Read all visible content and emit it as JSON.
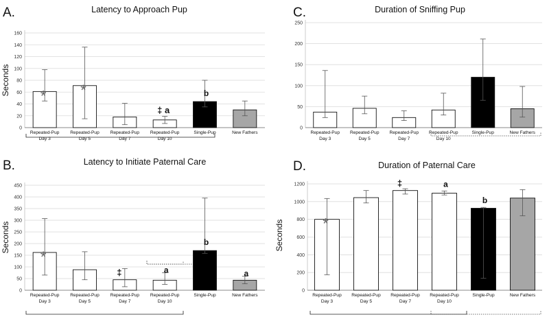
{
  "chart_data": [
    {
      "panel": "A.",
      "type": "bar",
      "title": "Latency to Approach Pup",
      "ylabel": "Seconds",
      "ylim": [
        0,
        160
      ],
      "yticks": [
        0,
        20,
        40,
        60,
        80,
        100,
        120,
        140,
        160
      ],
      "categories": [
        [
          "Repeated-Pup",
          "Day 3"
        ],
        [
          "Repeated-Pup",
          "Day 5"
        ],
        [
          "Repeated-Pup",
          "Day 7"
        ],
        [
          "Repeated-Pup",
          "Day 10"
        ],
        [
          "Single-Pup"
        ],
        [
          "New Fathers"
        ]
      ],
      "values": [
        61,
        71,
        18,
        13,
        44,
        30
      ],
      "err_low": [
        45,
        15,
        5,
        7,
        35,
        20
      ],
      "err_high": [
        98,
        136,
        41,
        19,
        80,
        45
      ],
      "fills": [
        "#ffffff",
        "#ffffff",
        "#ffffff",
        "#ffffff",
        "#000000",
        "#a6a6a6"
      ],
      "annotations": [
        "*",
        "*",
        "",
        "‡ a",
        "b",
        ""
      ]
    },
    {
      "panel": "B.",
      "type": "bar",
      "title": "Latency to Initiate Paternal Care",
      "ylabel": "Seconds",
      "ylim": [
        0,
        450
      ],
      "yticks": [
        0,
        50,
        100,
        150,
        200,
        250,
        300,
        350,
        400,
        450
      ],
      "categories": [
        [
          "Repeated-Pup",
          "Day 3"
        ],
        [
          "Repeated-Pup",
          "Day 5"
        ],
        [
          "Repeated-Pup",
          "Day 7"
        ],
        [
          "Repeated-Pup",
          "Day 10"
        ],
        [
          "Single-Pup"
        ],
        [
          "New Fathers"
        ]
      ],
      "values": [
        162,
        88,
        45,
        43,
        170,
        43
      ],
      "err_low": [
        65,
        45,
        15,
        25,
        158,
        28
      ],
      "err_high": [
        307,
        165,
        93,
        75,
        395,
        60
      ],
      "fills": [
        "#ffffff",
        "#ffffff",
        "#ffffff",
        "#ffffff",
        "#000000",
        "#a6a6a6"
      ],
      "annotations": [
        "*",
        "",
        "‡",
        "a",
        "b",
        "a"
      ]
    },
    {
      "panel": "C.",
      "type": "bar",
      "title": "Duration of Sniffing Pup",
      "ylabel": "",
      "ylim": [
        0,
        250
      ],
      "yticks": [
        0,
        50,
        100,
        150,
        200,
        250
      ],
      "categories": [
        [
          "Repeated-Pup",
          "Day 3"
        ],
        [
          "Repeated-Pup",
          "Day 5"
        ],
        [
          "Repeated-Pup",
          "Day 7"
        ],
        [
          "Repeated-Pup",
          "Day 10"
        ],
        [
          "Single-Pup"
        ],
        [
          "New Fathers"
        ]
      ],
      "values": [
        37,
        46,
        24,
        42,
        120,
        45
      ],
      "err_low": [
        24,
        33,
        17,
        30,
        65,
        25
      ],
      "err_high": [
        136,
        75,
        40,
        82,
        211,
        98
      ],
      "fills": [
        "#ffffff",
        "#ffffff",
        "#ffffff",
        "#ffffff",
        "#000000",
        "#a6a6a6"
      ],
      "annotations": [
        "",
        "",
        "",
        "",
        "",
        ""
      ]
    },
    {
      "panel": "D.",
      "type": "bar",
      "title": "Duration of Paternal Care",
      "ylabel": "Seconds",
      "ylim": [
        0,
        1200
      ],
      "yticks": [
        0,
        200,
        400,
        600,
        800,
        1000,
        1200
      ],
      "categories": [
        [
          "Repeated-Pup",
          "Day 3"
        ],
        [
          "Repeated-Pup",
          "Day 5"
        ],
        [
          "Repeated-Pup",
          "Day 7"
        ],
        [
          "Repeated-Pup",
          "Day 10"
        ],
        [
          "Single-Pup"
        ],
        [
          "New Fathers"
        ]
      ],
      "values": [
        800,
        1045,
        1125,
        1095,
        925,
        1040
      ],
      "err_low": [
        175,
        985,
        1085,
        1075,
        135,
        840
      ],
      "err_high": [
        1035,
        1125,
        1145,
        1120,
        935,
        1135
      ],
      "fills": [
        "#ffffff",
        "#ffffff",
        "#ffffff",
        "#ffffff",
        "#000000",
        "#a6a6a6"
      ],
      "annotations": [
        "*",
        "",
        "‡",
        "a",
        "b",
        ""
      ]
    }
  ]
}
